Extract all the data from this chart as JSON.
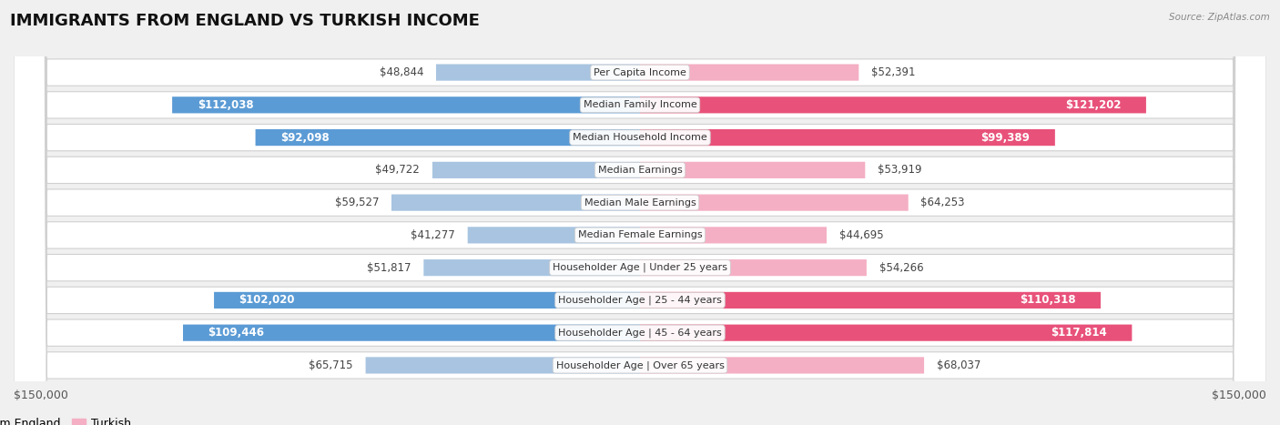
{
  "title": "IMMIGRANTS FROM ENGLAND VS TURKISH INCOME",
  "source": "Source: ZipAtlas.com",
  "categories": [
    "Per Capita Income",
    "Median Family Income",
    "Median Household Income",
    "Median Earnings",
    "Median Male Earnings",
    "Median Female Earnings",
    "Householder Age | Under 25 years",
    "Householder Age | 25 - 44 years",
    "Householder Age | 45 - 64 years",
    "Householder Age | Over 65 years"
  ],
  "england_values": [
    48844,
    112038,
    92098,
    49722,
    59527,
    41277,
    51817,
    102020,
    109446,
    65715
  ],
  "turkish_values": [
    52391,
    121202,
    99389,
    53919,
    64253,
    44695,
    54266,
    110318,
    117814,
    68037
  ],
  "england_labels": [
    "$48,844",
    "$112,038",
    "$92,098",
    "$49,722",
    "$59,527",
    "$41,277",
    "$51,817",
    "$102,020",
    "$109,446",
    "$65,715"
  ],
  "turkish_labels": [
    "$52,391",
    "$121,202",
    "$99,389",
    "$53,919",
    "$64,253",
    "$44,695",
    "$54,266",
    "$110,318",
    "$117,814",
    "$68,037"
  ],
  "england_color_light": "#a8c4e0",
  "england_color_dark": "#5b9bd5",
  "turkish_color_light": "#f4afc4",
  "turkish_color_dark": "#e8527a",
  "inside_threshold": 70000,
  "max_value": 150000,
  "legend_england": "Immigrants from England",
  "legend_turkish": "Turkish",
  "bg_color": "#f0f0f0",
  "row_bg_color": "#ffffff",
  "title_fontsize": 13,
  "label_fontsize": 8.5,
  "category_fontsize": 8,
  "axis_label_fontsize": 9
}
